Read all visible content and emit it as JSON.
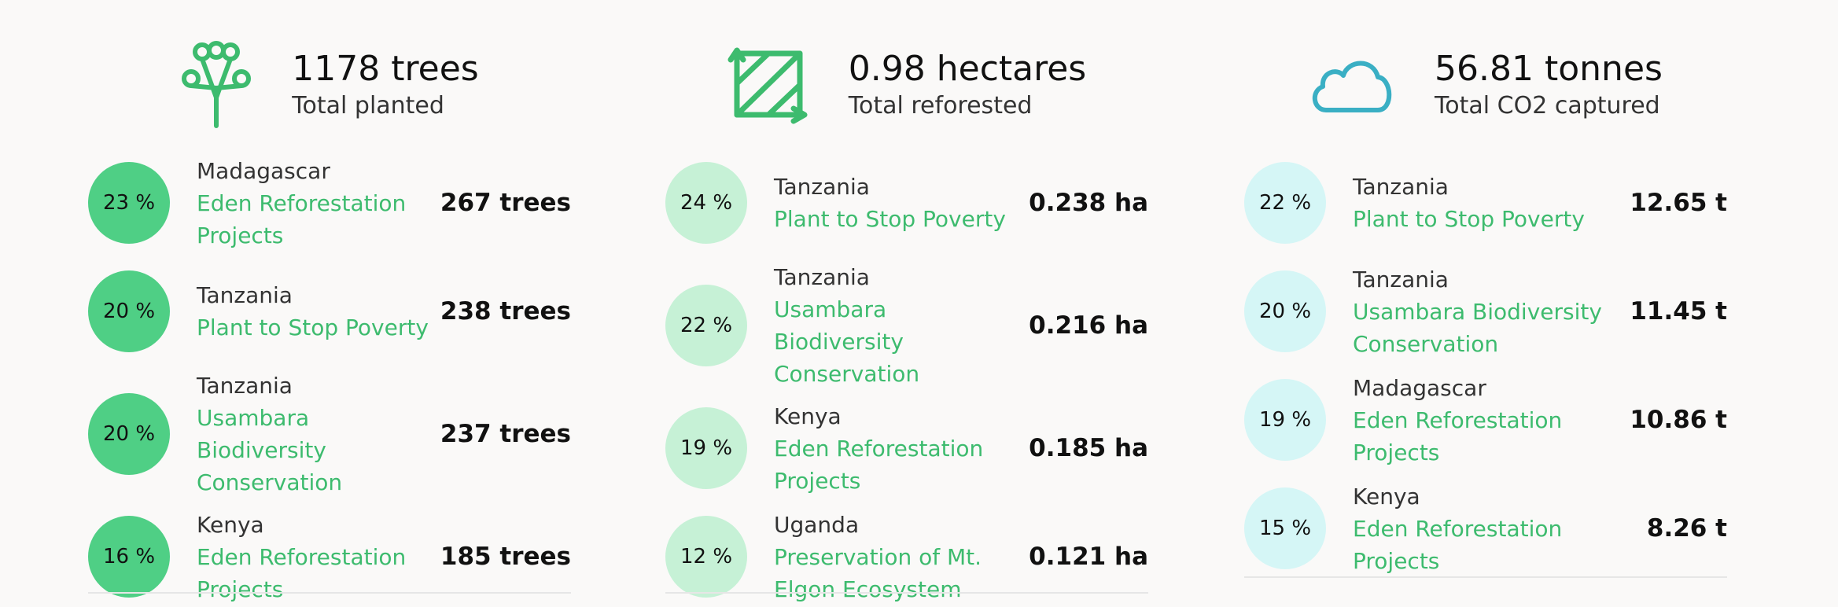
{
  "columns": [
    {
      "header": {
        "value": "1178 trees",
        "label": "Total planted"
      },
      "rows": [
        {
          "percent": "23 %",
          "country": "Madagascar",
          "project": "Eden Reforestation Projects",
          "amount": "267 trees"
        },
        {
          "percent": "20 %",
          "country": "Tanzania",
          "project": "Plant to Stop Poverty",
          "amount": "238 trees"
        },
        {
          "percent": "20 %",
          "country": "Tanzania",
          "project": "Usambara Biodiversity Conservation",
          "amount": "237 trees"
        },
        {
          "percent": "16 %",
          "country": "Kenya",
          "project": "Eden Reforestation Projects",
          "amount": "185 trees"
        }
      ]
    },
    {
      "header": {
        "value": "0.98 hectares",
        "label": "Total reforested"
      },
      "rows": [
        {
          "percent": "24 %",
          "country": "Tanzania",
          "project": "Plant to Stop Poverty",
          "amount": "0.238 ha"
        },
        {
          "percent": "22 %",
          "country": "Tanzania",
          "project": "Usambara Biodiversity Conservation",
          "amount": "0.216 ha"
        },
        {
          "percent": "19 %",
          "country": "Kenya",
          "project": "Eden Reforestation Projects",
          "amount": "0.185 ha"
        },
        {
          "percent": "12 %",
          "country": "Uganda",
          "project": "Preservation of Mt. Elgon Ecosystem",
          "amount": "0.121 ha"
        }
      ]
    },
    {
      "header": {
        "value": "56.81 tonnes",
        "label": "Total CO2 captured"
      },
      "rows": [
        {
          "percent": "22 %",
          "country": "Tanzania",
          "project": "Plant to Stop Poverty",
          "amount": "12.65 t"
        },
        {
          "percent": "20 %",
          "country": "Tanzania",
          "project": "Usambara Biodiversity Conservation",
          "amount": "11.45 t"
        },
        {
          "percent": "19 %",
          "country": "Madagascar",
          "project": "Eden Reforestation Projects",
          "amount": "10.86 t"
        },
        {
          "percent": "15 %",
          "country": "Kenya",
          "project": "Eden Reforestation Projects",
          "amount": "8.26 t"
        }
      ]
    }
  ]
}
